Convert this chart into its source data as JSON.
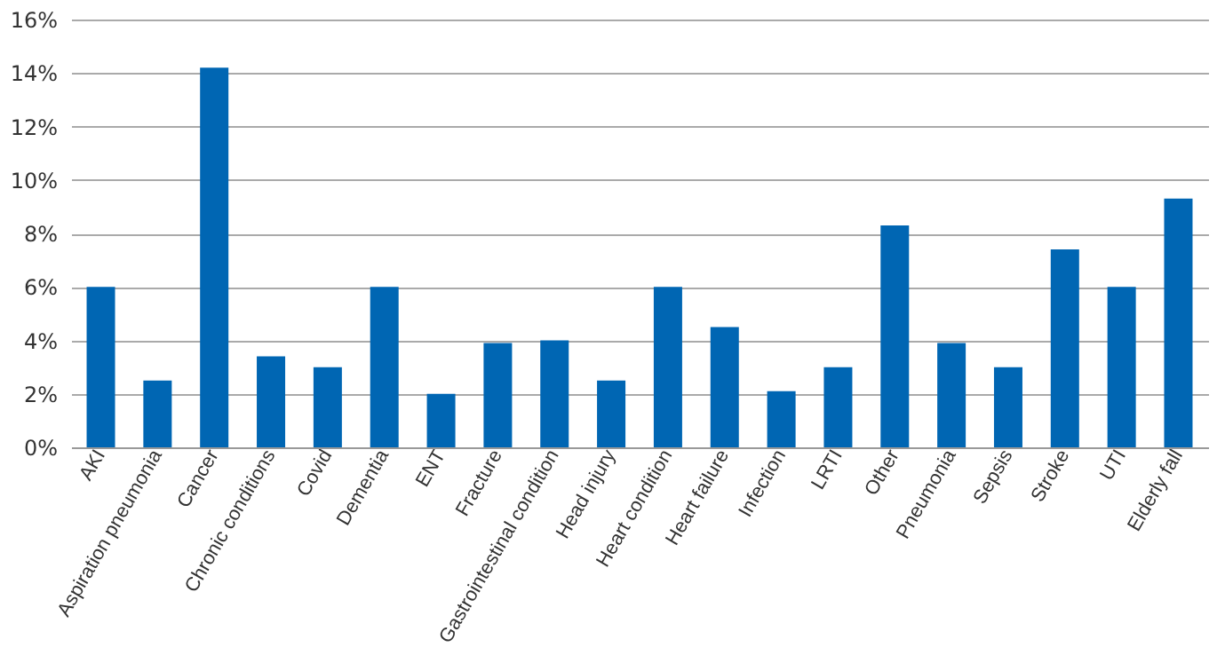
{
  "chart_data": {
    "type": "bar",
    "categories": [
      "AKI",
      "Aspiration pneumonia",
      "Cancer",
      "Chronic conditions",
      "Covid",
      "Dementia",
      "ENT",
      "Fracture",
      "Gastrointestinal condition",
      "Head injury",
      "Heart condition",
      "Heart failure",
      "Infection",
      "LRTI",
      "Other",
      "Pneumonia",
      "Sepsis",
      "Stroke",
      "UTI",
      "Elderly fall"
    ],
    "values": [
      6.0,
      2.5,
      14.2,
      3.4,
      3.0,
      6.0,
      2.0,
      3.9,
      4.0,
      2.5,
      6.0,
      4.5,
      2.1,
      3.0,
      8.3,
      3.9,
      3.0,
      7.4,
      6.0,
      9.3
    ],
    "color": "#0066b3",
    "ylim": [
      0,
      16
    ],
    "yticks": [
      {
        "value": 0,
        "label": "0%"
      },
      {
        "value": 2,
        "label": "2%"
      },
      {
        "value": 4,
        "label": "4%"
      },
      {
        "value": 6,
        "label": "6%"
      },
      {
        "value": 8,
        "label": "8%"
      },
      {
        "value": 10,
        "label": "10%"
      },
      {
        "value": 12,
        "label": "12%"
      },
      {
        "value": 14,
        "label": "14%"
      },
      {
        "value": 16,
        "label": "16%"
      }
    ],
    "grid": "y"
  }
}
